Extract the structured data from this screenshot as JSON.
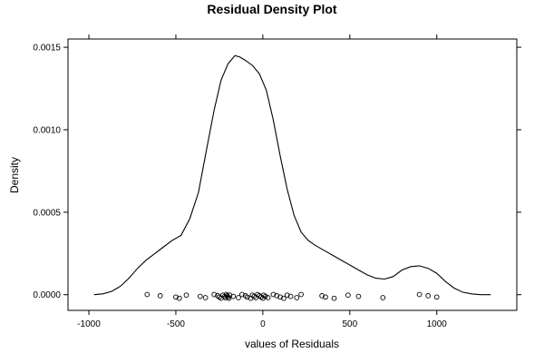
{
  "chart_data": {
    "type": "line",
    "title": "Residual Density Plot",
    "xlabel": "values of Residuals",
    "ylabel": "Density",
    "xlim": [
      -1120,
      1460
    ],
    "ylim": [
      -9.5e-05,
      0.00155
    ],
    "x_ticks": [
      -1000,
      -500,
      0,
      500,
      1000
    ],
    "x_tick_labels": [
      "-1000",
      "-500",
      "0",
      "500",
      "1000"
    ],
    "y_ticks": [
      0.0,
      0.0005,
      0.001,
      0.0015
    ],
    "y_tick_labels": [
      "0.0000",
      "0.0005",
      "0.0010",
      "0.0015"
    ],
    "grid": false,
    "series": [
      {
        "x": [
          -970,
          -920,
          -870,
          -820,
          -770,
          -720,
          -670,
          -620,
          -570,
          -520,
          -470,
          -420,
          -370,
          -320,
          -280,
          -240,
          -200,
          -160,
          -130,
          -100,
          -60,
          -20,
          20,
          60,
          100,
          140,
          180,
          220,
          260,
          300,
          350,
          400,
          450,
          500,
          550,
          600,
          650,
          700,
          750,
          800,
          850,
          900,
          950,
          1000,
          1050,
          1100,
          1150,
          1200,
          1250,
          1310
        ],
        "y": [
          0.0,
          5e-06,
          2e-05,
          5e-05,
          0.0001,
          0.00016,
          0.00021,
          0.00025,
          0.00029,
          0.00033,
          0.00036,
          0.00046,
          0.00062,
          0.0009,
          0.00112,
          0.0013,
          0.0014,
          0.00145,
          0.00144,
          0.00142,
          0.00139,
          0.00134,
          0.00124,
          0.00106,
          0.00084,
          0.00064,
          0.00048,
          0.00038,
          0.00033,
          0.0003,
          0.00027,
          0.00024,
          0.00021,
          0.00018,
          0.00015,
          0.00012,
          0.0001,
          9.5e-05,
          0.00011,
          0.00015,
          0.00017,
          0.000175,
          0.00016,
          0.00013,
          8e-05,
          4e-05,
          1.5e-05,
          5e-06,
          0.0,
          0.0
        ]
      }
    ],
    "rug": {
      "y": -1e-05,
      "x": [
        -665,
        -590,
        -500,
        -480,
        -440,
        -360,
        -330,
        -280,
        -260,
        -250,
        -240,
        -230,
        -220,
        -215,
        -210,
        -205,
        -200,
        -195,
        -190,
        -170,
        -140,
        -120,
        -100,
        -90,
        -70,
        -60,
        -50,
        -40,
        -30,
        -20,
        -10,
        0,
        5,
        15,
        30,
        60,
        80,
        100,
        120,
        140,
        160,
        195,
        220,
        340,
        360,
        410,
        490,
        550,
        690,
        900,
        950,
        1000
      ]
    }
  }
}
